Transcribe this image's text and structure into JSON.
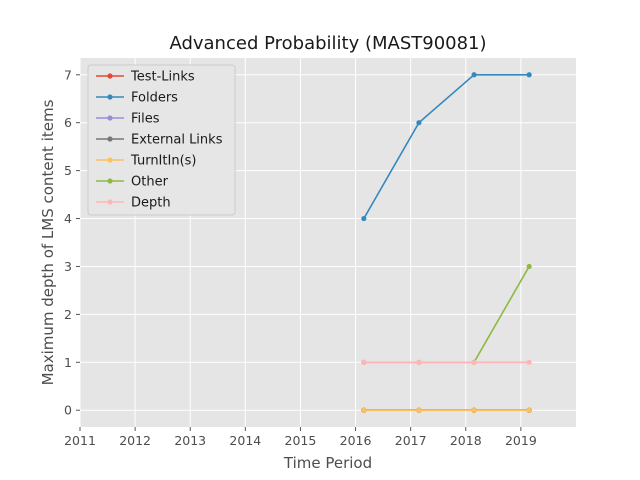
{
  "chart_data": {
    "type": "line",
    "title": "Advanced Probability (MAST90081)",
    "xlabel": "Time Period",
    "ylabel": "Maximum depth of LMS content items",
    "xlim": [
      2011,
      2020
    ],
    "ylim": [
      -0.35,
      7.35
    ],
    "xticks": [
      2011,
      2012,
      2013,
      2014,
      2015,
      2016,
      2017,
      2018,
      2019
    ],
    "yticks": [
      0,
      1,
      2,
      3,
      4,
      5,
      6,
      7
    ],
    "grid": true,
    "legend_position": "top-left",
    "series": [
      {
        "name": "Test-Links",
        "color": "#E24A33",
        "x": [
          2016.15,
          2017.15,
          2018.15,
          2019.15
        ],
        "y": [
          0,
          0,
          0,
          0
        ]
      },
      {
        "name": "Folders",
        "color": "#348ABD",
        "x": [
          2016.15,
          2017.15,
          2018.15,
          2019.15
        ],
        "y": [
          4,
          6,
          7,
          7
        ]
      },
      {
        "name": "Files",
        "color": "#988ED5",
        "x": [
          2016.15,
          2017.15,
          2018.15,
          2019.15
        ],
        "y": [
          0,
          0,
          0,
          0
        ]
      },
      {
        "name": "External Links",
        "color": "#777777",
        "x": [
          2016.15,
          2017.15,
          2018.15,
          2019.15
        ],
        "y": [
          0,
          0,
          0,
          0
        ]
      },
      {
        "name": "TurnItIn(s)",
        "color": "#FBC15E",
        "x": [
          2016.15,
          2017.15,
          2018.15,
          2019.15
        ],
        "y": [
          0,
          0,
          0,
          0
        ]
      },
      {
        "name": "Other",
        "color": "#8EBA42",
        "x": [
          2016.15,
          2017.15,
          2018.15,
          2019.15
        ],
        "y": [
          1,
          1,
          1,
          3
        ]
      },
      {
        "name": "Depth",
        "color": "#FFB5B8",
        "x": [
          2016.15,
          2017.15,
          2018.15,
          2019.15
        ],
        "y": [
          1,
          1,
          1,
          1
        ]
      }
    ]
  }
}
